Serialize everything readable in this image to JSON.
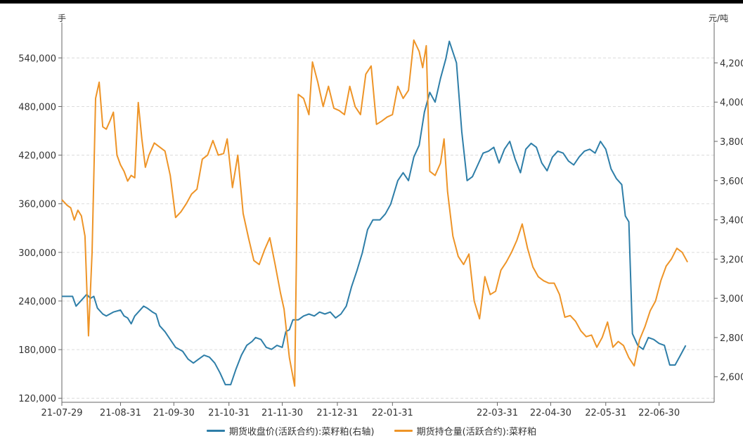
{
  "chart_data": {
    "type": "line",
    "left_axis": {
      "unit": "手",
      "ticks": [
        "120,000",
        "180,000",
        "240,000",
        "300,000",
        "360,000",
        "420,000",
        "480,000",
        "540,000"
      ],
      "ylim": [
        115000,
        575000
      ]
    },
    "right_axis": {
      "unit": "元/吨",
      "ticks": [
        "2,600",
        "2,800",
        "3,000",
        "3,200",
        "3,400",
        "3,600",
        "3,800",
        "4,000",
        "4,200"
      ],
      "ylim": [
        2470,
        4370
      ]
    },
    "x_ticks": [
      {
        "label": "21-07-29",
        "date": "2021-07-29"
      },
      {
        "label": "21-08-31",
        "date": "2021-08-31"
      },
      {
        "label": "21-09-30",
        "date": "2021-09-30"
      },
      {
        "label": "21-10-31",
        "date": "2021-10-31"
      },
      {
        "label": "21-11-30",
        "date": "2021-11-30"
      },
      {
        "label": "21-12-31",
        "date": "2021-12-31"
      },
      {
        "label": "22-01-31",
        "date": "2022-01-31"
      },
      {
        "label": "22-03-31",
        "date": "2022-03-31"
      },
      {
        "label": "22-04-30",
        "date": "2022-04-30"
      },
      {
        "label": "22-05-31",
        "date": "2022-05-31"
      },
      {
        "label": "22-06-30",
        "date": "2022-06-30"
      }
    ],
    "x_range": [
      "2021-07-29",
      "2022-07-31"
    ],
    "grid": true,
    "legend_position": "bottom",
    "series": [
      {
        "name": "期货收盘价(活跃合约):菜籽粕(右轴)",
        "axis": "right",
        "color": "#2e7ea8",
        "points": [
          [
            "2021-07-29",
            3010
          ],
          [
            "2021-08-02",
            3010
          ],
          [
            "2021-08-04",
            3010
          ],
          [
            "2021-08-06",
            2960
          ],
          [
            "2021-08-09",
            2990
          ],
          [
            "2021-08-12",
            3020
          ],
          [
            "2021-08-14",
            3000
          ],
          [
            "2021-08-16",
            3010
          ],
          [
            "2021-08-18",
            2950
          ],
          [
            "2021-08-21",
            2920
          ],
          [
            "2021-08-23",
            2910
          ],
          [
            "2021-08-25",
            2920
          ],
          [
            "2021-08-27",
            2930
          ],
          [
            "2021-08-31",
            2940
          ],
          [
            "2021-09-02",
            2910
          ],
          [
            "2021-09-04",
            2900
          ],
          [
            "2021-09-06",
            2870
          ],
          [
            "2021-09-08",
            2910
          ],
          [
            "2021-09-11",
            2940
          ],
          [
            "2021-09-13",
            2960
          ],
          [
            "2021-09-15",
            2950
          ],
          [
            "2021-09-18",
            2930
          ],
          [
            "2021-09-20",
            2920
          ],
          [
            "2021-09-22",
            2860
          ],
          [
            "2021-09-25",
            2830
          ],
          [
            "2021-09-28",
            2790
          ],
          [
            "2021-10-01",
            2750
          ],
          [
            "2021-10-05",
            2730
          ],
          [
            "2021-10-08",
            2690
          ],
          [
            "2021-10-11",
            2670
          ],
          [
            "2021-10-14",
            2690
          ],
          [
            "2021-10-17",
            2710
          ],
          [
            "2021-10-20",
            2700
          ],
          [
            "2021-10-23",
            2670
          ],
          [
            "2021-10-26",
            2620
          ],
          [
            "2021-10-29",
            2560
          ],
          [
            "2021-11-01",
            2560
          ],
          [
            "2021-11-04",
            2640
          ],
          [
            "2021-11-07",
            2710
          ],
          [
            "2021-11-10",
            2760
          ],
          [
            "2021-11-13",
            2780
          ],
          [
            "2021-11-15",
            2800
          ],
          [
            "2021-11-18",
            2790
          ],
          [
            "2021-11-21",
            2750
          ],
          [
            "2021-11-24",
            2740
          ],
          [
            "2021-11-27",
            2760
          ],
          [
            "2021-11-30",
            2750
          ],
          [
            "2021-12-02",
            2830
          ],
          [
            "2021-12-04",
            2840
          ],
          [
            "2021-12-06",
            2890
          ],
          [
            "2021-12-09",
            2890
          ],
          [
            "2021-12-12",
            2910
          ],
          [
            "2021-12-15",
            2920
          ],
          [
            "2021-12-18",
            2910
          ],
          [
            "2021-12-21",
            2930
          ],
          [
            "2021-12-24",
            2920
          ],
          [
            "2021-12-27",
            2930
          ],
          [
            "2021-12-30",
            2900
          ],
          [
            "2022-01-02",
            2920
          ],
          [
            "2022-01-05",
            2960
          ],
          [
            "2022-01-08",
            3060
          ],
          [
            "2022-01-11",
            3140
          ],
          [
            "2022-01-14",
            3230
          ],
          [
            "2022-01-17",
            3350
          ],
          [
            "2022-01-20",
            3400
          ],
          [
            "2022-01-24",
            3400
          ],
          [
            "2022-01-27",
            3430
          ],
          [
            "2022-01-30",
            3480
          ],
          [
            "2022-02-03",
            3600
          ],
          [
            "2022-02-06",
            3640
          ],
          [
            "2022-02-09",
            3600
          ],
          [
            "2022-02-12",
            3720
          ],
          [
            "2022-02-15",
            3780
          ],
          [
            "2022-02-18",
            3950
          ],
          [
            "2022-02-21",
            4050
          ],
          [
            "2022-02-24",
            4000
          ],
          [
            "2022-02-27",
            4120
          ],
          [
            "2022-03-02",
            4220
          ],
          [
            "2022-03-04",
            4310
          ],
          [
            "2022-03-08",
            4200
          ],
          [
            "2022-03-11",
            3850
          ],
          [
            "2022-03-14",
            3600
          ],
          [
            "2022-03-17",
            3620
          ],
          [
            "2022-03-20",
            3680
          ],
          [
            "2022-03-23",
            3740
          ],
          [
            "2022-03-26",
            3750
          ],
          [
            "2022-03-29",
            3770
          ],
          [
            "2022-04-01",
            3690
          ],
          [
            "2022-04-04",
            3760
          ],
          [
            "2022-04-07",
            3800
          ],
          [
            "2022-04-10",
            3710
          ],
          [
            "2022-04-13",
            3640
          ],
          [
            "2022-04-16",
            3760
          ],
          [
            "2022-04-19",
            3790
          ],
          [
            "2022-04-22",
            3770
          ],
          [
            "2022-04-25",
            3690
          ],
          [
            "2022-04-28",
            3650
          ],
          [
            "2022-05-01",
            3720
          ],
          [
            "2022-05-04",
            3750
          ],
          [
            "2022-05-07",
            3740
          ],
          [
            "2022-05-10",
            3700
          ],
          [
            "2022-05-13",
            3680
          ],
          [
            "2022-05-16",
            3720
          ],
          [
            "2022-05-19",
            3750
          ],
          [
            "2022-05-22",
            3760
          ],
          [
            "2022-05-25",
            3740
          ],
          [
            "2022-05-28",
            3800
          ],
          [
            "2022-05-31",
            3760
          ],
          [
            "2022-06-03",
            3660
          ],
          [
            "2022-06-06",
            3610
          ],
          [
            "2022-06-09",
            3580
          ],
          [
            "2022-06-11",
            3420
          ],
          [
            "2022-06-13",
            3390
          ],
          [
            "2022-06-15",
            2820
          ],
          [
            "2022-06-18",
            2760
          ],
          [
            "2022-06-21",
            2740
          ],
          [
            "2022-06-24",
            2800
          ],
          [
            "2022-06-27",
            2790
          ],
          [
            "2022-06-30",
            2770
          ],
          [
            "2022-07-03",
            2760
          ],
          [
            "2022-07-06",
            2660
          ],
          [
            "2022-07-09",
            2660
          ],
          [
            "2022-07-12",
            2710
          ],
          [
            "2022-07-15",
            2760
          ]
        ]
      },
      {
        "name": "期货持仓量(活跃合约):菜籽粕",
        "axis": "left",
        "color": "#ee9427",
        "points": [
          [
            "2021-07-29",
            365000
          ],
          [
            "2021-08-01",
            358000
          ],
          [
            "2021-08-03",
            355000
          ],
          [
            "2021-08-05",
            340000
          ],
          [
            "2021-08-07",
            352000
          ],
          [
            "2021-08-09",
            345000
          ],
          [
            "2021-08-11",
            320000
          ],
          [
            "2021-08-13",
            197000
          ],
          [
            "2021-08-15",
            300000
          ],
          [
            "2021-08-17",
            490000
          ],
          [
            "2021-08-19",
            510000
          ],
          [
            "2021-08-21",
            455000
          ],
          [
            "2021-08-23",
            452000
          ],
          [
            "2021-08-25",
            462000
          ],
          [
            "2021-08-27",
            473000
          ],
          [
            "2021-08-29",
            420000
          ],
          [
            "2021-08-31",
            408000
          ],
          [
            "2021-09-02",
            400000
          ],
          [
            "2021-09-04",
            388000
          ],
          [
            "2021-09-06",
            395000
          ],
          [
            "2021-09-08",
            392000
          ],
          [
            "2021-09-10",
            485000
          ],
          [
            "2021-09-12",
            440000
          ],
          [
            "2021-09-14",
            405000
          ],
          [
            "2021-09-16",
            420000
          ],
          [
            "2021-09-19",
            435000
          ],
          [
            "2021-09-22",
            430000
          ],
          [
            "2021-09-25",
            425000
          ],
          [
            "2021-09-28",
            395000
          ],
          [
            "2021-10-01",
            343000
          ],
          [
            "2021-10-04",
            350000
          ],
          [
            "2021-10-07",
            360000
          ],
          [
            "2021-10-10",
            372000
          ],
          [
            "2021-10-13",
            378000
          ],
          [
            "2021-10-16",
            415000
          ],
          [
            "2021-10-19",
            420000
          ],
          [
            "2021-10-22",
            438000
          ],
          [
            "2021-10-25",
            420000
          ],
          [
            "2021-10-28",
            422000
          ],
          [
            "2021-10-30",
            440000
          ],
          [
            "2021-11-02",
            380000
          ],
          [
            "2021-11-05",
            420000
          ],
          [
            "2021-11-08",
            348000
          ],
          [
            "2021-11-11",
            318000
          ],
          [
            "2021-11-14",
            290000
          ],
          [
            "2021-11-17",
            285000
          ],
          [
            "2021-11-20",
            303000
          ],
          [
            "2021-11-23",
            318000
          ],
          [
            "2021-11-26",
            285000
          ],
          [
            "2021-11-29",
            250000
          ],
          [
            "2021-12-01",
            230000
          ],
          [
            "2021-12-04",
            170000
          ],
          [
            "2021-12-07",
            135000
          ],
          [
            "2021-12-08",
            300000
          ],
          [
            "2021-12-09",
            495000
          ],
          [
            "2021-12-12",
            490000
          ],
          [
            "2021-12-15",
            470000
          ],
          [
            "2021-12-17",
            535000
          ],
          [
            "2021-12-20",
            510000
          ],
          [
            "2021-12-23",
            480000
          ],
          [
            "2021-12-26",
            505000
          ],
          [
            "2021-12-29",
            478000
          ],
          [
            "2022-01-01",
            475000
          ],
          [
            "2022-01-04",
            470000
          ],
          [
            "2022-01-07",
            505000
          ],
          [
            "2022-01-10",
            480000
          ],
          [
            "2022-01-13",
            470000
          ],
          [
            "2022-01-16",
            520000
          ],
          [
            "2022-01-19",
            530000
          ],
          [
            "2022-01-22",
            458000
          ],
          [
            "2022-01-25",
            462000
          ],
          [
            "2022-01-28",
            467000
          ],
          [
            "2022-01-31",
            470000
          ],
          [
            "2022-02-03",
            505000
          ],
          [
            "2022-02-06",
            490000
          ],
          [
            "2022-02-09",
            500000
          ],
          [
            "2022-02-12",
            562000
          ],
          [
            "2022-02-15",
            548000
          ],
          [
            "2022-02-17",
            528000
          ],
          [
            "2022-02-19",
            555000
          ],
          [
            "2022-02-21",
            400000
          ],
          [
            "2022-02-24",
            395000
          ],
          [
            "2022-02-27",
            410000
          ],
          [
            "2022-03-01",
            440000
          ],
          [
            "2022-03-03",
            375000
          ],
          [
            "2022-03-06",
            320000
          ],
          [
            "2022-03-09",
            295000
          ],
          [
            "2022-03-12",
            285000
          ],
          [
            "2022-03-15",
            298000
          ],
          [
            "2022-03-18",
            240000
          ],
          [
            "2022-03-21",
            218000
          ],
          [
            "2022-03-24",
            270000
          ],
          [
            "2022-03-27",
            248000
          ],
          [
            "2022-03-30",
            252000
          ],
          [
            "2022-04-02",
            278000
          ],
          [
            "2022-04-05",
            288000
          ],
          [
            "2022-04-08",
            300000
          ],
          [
            "2022-04-11",
            315000
          ],
          [
            "2022-04-14",
            335000
          ],
          [
            "2022-04-17",
            305000
          ],
          [
            "2022-04-20",
            282000
          ],
          [
            "2022-04-23",
            270000
          ],
          [
            "2022-04-26",
            265000
          ],
          [
            "2022-04-29",
            262000
          ],
          [
            "2022-05-02",
            262000
          ],
          [
            "2022-05-05",
            248000
          ],
          [
            "2022-05-08",
            220000
          ],
          [
            "2022-05-11",
            222000
          ],
          [
            "2022-05-14",
            215000
          ],
          [
            "2022-05-17",
            203000
          ],
          [
            "2022-05-20",
            196000
          ],
          [
            "2022-05-23",
            198000
          ],
          [
            "2022-05-26",
            183000
          ],
          [
            "2022-05-29",
            195000
          ],
          [
            "2022-06-01",
            214000
          ],
          [
            "2022-06-04",
            183000
          ],
          [
            "2022-06-07",
            190000
          ],
          [
            "2022-06-10",
            185000
          ],
          [
            "2022-06-13",
            170000
          ],
          [
            "2022-06-16",
            160000
          ],
          [
            "2022-06-19",
            192000
          ],
          [
            "2022-06-22",
            208000
          ],
          [
            "2022-06-25",
            228000
          ],
          [
            "2022-06-28",
            240000
          ],
          [
            "2022-07-01",
            265000
          ],
          [
            "2022-07-04",
            283000
          ],
          [
            "2022-07-07",
            292000
          ],
          [
            "2022-07-10",
            305000
          ],
          [
            "2022-07-13",
            300000
          ],
          [
            "2022-07-16",
            288000
          ]
        ]
      }
    ]
  }
}
